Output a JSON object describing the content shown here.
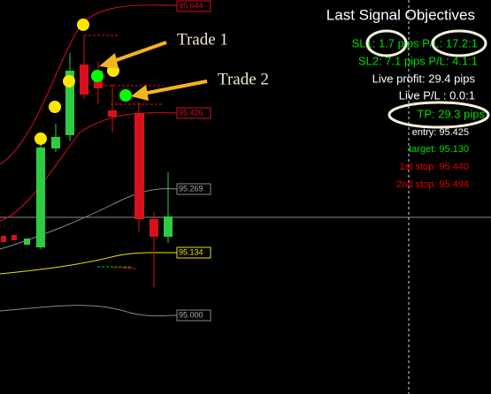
{
  "price_labels": [
    "95.644",
    "95.426",
    "95.269",
    "95.134",
    "95.000"
  ],
  "annotations": [
    "Trade 1",
    "Trade 2"
  ],
  "panel": {
    "title": "Last Signal Objectives",
    "lines": [
      "SL1: 1.7 pips P/L: 17.2:1",
      "SL2: 7.1 pips P/L: 4.1:1",
      "Live profit: 29.4 pips",
      "Live P/L : 0.0:1",
      "TP: 29.3 pips",
      "entry: 95.425",
      "target: 95.130",
      "1st stop: 95.440",
      "2nd stop: 95.494"
    ]
  }
}
